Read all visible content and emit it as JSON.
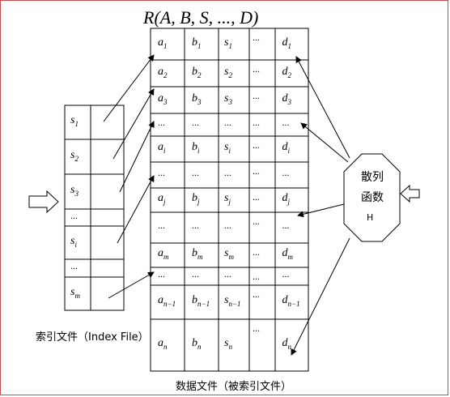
{
  "title": "R(A,  B,  S,  ...,  D)",
  "index_label": "索引文件（Index File）",
  "data_label": "数据文件（被索引文件）",
  "hash": {
    "line1": "散列",
    "line2": "函数",
    "line3": "H"
  },
  "index_rows": [
    "s_1",
    "s_2",
    "s_3",
    "...",
    "s_i",
    "...",
    "s_m"
  ],
  "data_rows": [
    [
      "a_1",
      "b_1",
      "s_1",
      "...",
      "d_1"
    ],
    [
      "a_2",
      "b_2",
      "s_2",
      "...",
      "d_2"
    ],
    [
      "a_3",
      "b_3",
      "s_3",
      "...",
      "d_3"
    ],
    [
      "...",
      "...",
      "...",
      "...",
      "..."
    ],
    [
      "a_i",
      "b_i",
      "s_i",
      "...",
      "d_i"
    ],
    [
      "...",
      "...",
      "...",
      "...",
      "..."
    ],
    [
      "a_j",
      "b_j",
      "s_j",
      "...",
      "d_j"
    ],
    [
      "...",
      "...",
      "...",
      "...",
      "..."
    ],
    [
      "a_m",
      "b_m",
      "s_m",
      "...",
      "d_m"
    ],
    [
      "...",
      "...",
      "...",
      "...",
      "..."
    ],
    [
      "a_{n-1}",
      "b_{n-1}",
      "s_{n-1}",
      "...",
      "d_{n-1}"
    ],
    [
      "a_n",
      "b_n",
      "s_n",
      "...",
      "d_n"
    ]
  ],
  "colors": {
    "frame": "#c0504d",
    "line": "#000000"
  }
}
